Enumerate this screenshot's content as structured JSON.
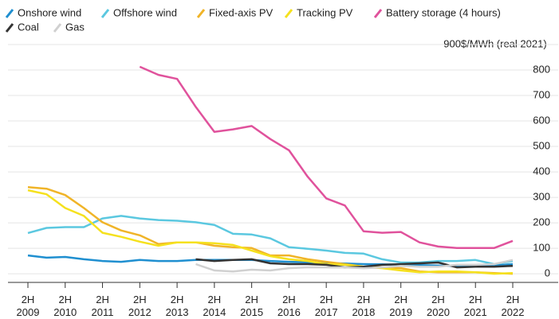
{
  "chart_data": {
    "type": "line",
    "ylabel": "$/MWh (real 2021)",
    "categories": [
      "2H 2009",
      null,
      "2H 2010",
      null,
      "2H 2011",
      null,
      "2H 2012",
      null,
      "2H 2013",
      null,
      "2H 2014",
      null,
      "2H 2015",
      null,
      "2H 2016",
      null,
      "2H 2017",
      null,
      "2H 2018",
      null,
      "2H 2019",
      null,
      "2H 2020",
      null,
      "2H 2021",
      null,
      "2H 2022"
    ],
    "ylim": [
      -34,
      900
    ],
    "yticks": [
      0,
      100,
      200,
      300,
      400,
      500,
      600,
      700,
      800,
      900
    ],
    "grid": true,
    "series": [
      {
        "name": "Onshore wind",
        "color": "#1f8fd0",
        "values": [
          72,
          63,
          66,
          57,
          50,
          47,
          54,
          50,
          50,
          54,
          54,
          54,
          54,
          50,
          47,
          45,
          42,
          40,
          38,
          37,
          35,
          34,
          32,
          31,
          30,
          33,
          38
        ]
      },
      {
        "name": "Offshore wind",
        "color": "#5bc8e0",
        "values": [
          160,
          180,
          183,
          183,
          217,
          227,
          217,
          211,
          208,
          202,
          192,
          157,
          154,
          139,
          104,
          98,
          91,
          82,
          79,
          57,
          44,
          44,
          50,
          50,
          54,
          38,
          50
        ]
      },
      {
        "name": "Fixed-axis PV",
        "color": "#f0b428",
        "values": [
          340,
          334,
          309,
          258,
          202,
          170,
          151,
          117,
          123,
          123,
          110,
          104,
          101,
          72,
          72,
          57,
          47,
          38,
          28,
          25,
          22,
          9,
          6,
          6,
          6,
          3,
          0
        ]
      },
      {
        "name": "Tracking PV",
        "color": "#f5e11e",
        "values": [
          328,
          312,
          258,
          227,
          161,
          145,
          126,
          110,
          123,
          123,
          120,
          113,
          91,
          69,
          57,
          50,
          38,
          35,
          28,
          22,
          13,
          6,
          9,
          9,
          6,
          0,
          3
        ]
      },
      {
        "name": "Battery storage (4 hours)",
        "color": "#e0529c",
        "values": [
          null,
          null,
          null,
          null,
          null,
          null,
          813,
          781,
          765,
          655,
          557,
          567,
          580,
          529,
          485,
          381,
          296,
          268,
          167,
          161,
          164,
          123,
          107,
          101,
          101,
          101,
          129
        ]
      },
      {
        "name": "Coal",
        "color": "#333333",
        "values": [
          null,
          null,
          null,
          null,
          null,
          null,
          null,
          null,
          null,
          57,
          50,
          54,
          57,
          41,
          38,
          38,
          35,
          25,
          28,
          35,
          38,
          41,
          44,
          25,
          28,
          28,
          31
        ]
      },
      {
        "name": "Gas",
        "color": "#d0d0d0",
        "values": [
          null,
          null,
          null,
          null,
          null,
          null,
          null,
          null,
          null,
          38,
          13,
          9,
          16,
          13,
          22,
          25,
          25,
          25,
          22,
          25,
          31,
          28,
          28,
          35,
          35,
          38,
          54
        ]
      }
    ]
  }
}
